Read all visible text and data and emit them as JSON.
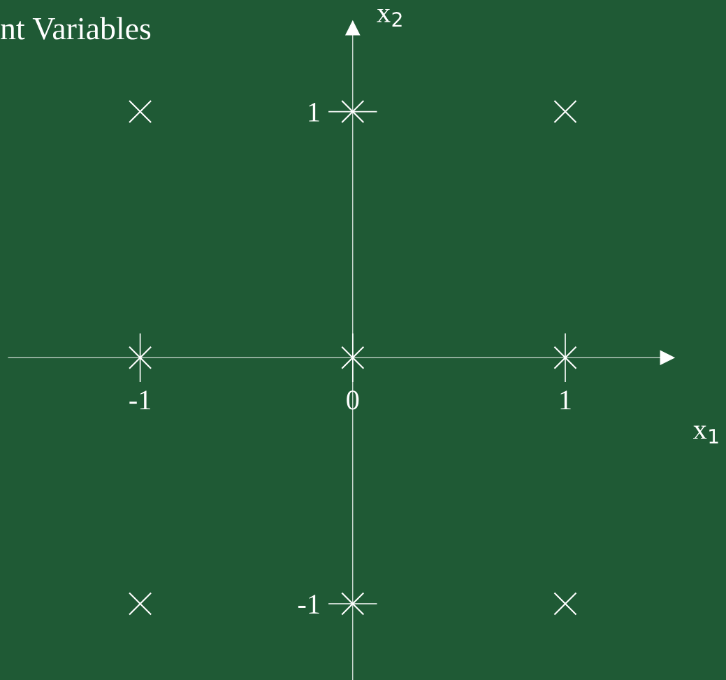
{
  "chart_data": {
    "type": "scatter",
    "title": "nt Variables",
    "xlabel": "x$_{1}$",
    "ylabel": "x$_{2}$",
    "x": [
      -1,
      0,
      1,
      -1,
      0,
      1,
      -1,
      0,
      1
    ],
    "series": [
      {
        "color": "#ffffff",
        "values": [
          1,
          1,
          1,
          0,
          0,
          0,
          -1,
          -1,
          -1
        ]
      }
    ],
    "xlim": [
      -1.62,
      1.48
    ],
    "ylim": [
      -1.31,
      1.34
    ],
    "xticks": [
      -1,
      0,
      1
    ],
    "yticks": [
      -1,
      1
    ],
    "marker": "cross",
    "grid": false,
    "legend": false
  }
}
